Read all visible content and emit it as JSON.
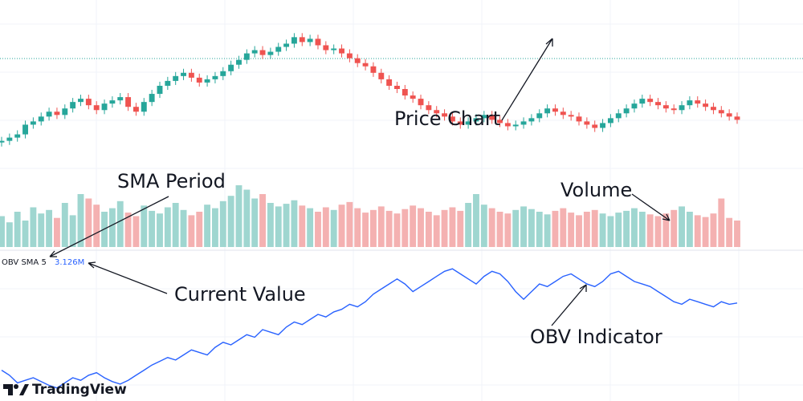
{
  "chart_data": {
    "type": "candlestick",
    "title": "",
    "panes": {
      "price": {
        "label": "Price Chart",
        "ylim": [
          0,
          100
        ],
        "reference_line": 30,
        "up_color": "#26a69a",
        "down_color": "#ef5350"
      },
      "volume": {
        "label": "Volume",
        "ylim": [
          0,
          100
        ]
      },
      "obv": {
        "label": "OBV Indicator",
        "indicator_name": "OBV SMA 5",
        "current_value": "3.126M",
        "line_color": "#2962ff",
        "ylim": [
          0,
          100
        ]
      }
    },
    "closes": [
      18,
      20,
      22,
      28,
      30,
      33,
      36,
      34,
      38,
      42,
      44,
      40,
      37,
      41,
      43,
      45,
      39,
      36,
      42,
      47,
      52,
      55,
      58,
      60,
      57,
      54,
      56,
      58,
      61,
      65,
      68,
      72,
      74,
      71,
      73,
      76,
      78,
      82,
      79,
      81,
      77,
      74,
      75,
      72,
      69,
      66,
      64,
      60,
      56,
      52,
      50,
      46,
      44,
      40,
      37,
      35,
      33,
      30,
      28,
      30,
      32,
      34,
      31,
      29,
      27,
      28,
      30,
      32,
      35,
      38,
      36,
      34,
      33,
      30,
      28,
      26,
      29,
      32,
      35,
      38,
      41,
      44,
      42,
      40,
      38,
      37,
      40,
      43,
      41,
      39,
      37,
      35,
      33,
      31
    ],
    "volumes": [
      35,
      28,
      40,
      30,
      45,
      38,
      42,
      33,
      50,
      36,
      60,
      55,
      48,
      40,
      44,
      52,
      39,
      35,
      47,
      41,
      38,
      45,
      50,
      42,
      36,
      40,
      48,
      44,
      52,
      58,
      70,
      65,
      55,
      60,
      50,
      46,
      49,
      53,
      47,
      44,
      40,
      45,
      42,
      48,
      51,
      44,
      39,
      42,
      46,
      41,
      38,
      43,
      47,
      44,
      40,
      36,
      42,
      45,
      41,
      50,
      60,
      48,
      44,
      40,
      38,
      42,
      46,
      43,
      40,
      37,
      41,
      44,
      39,
      36,
      40,
      42,
      38,
      35,
      39,
      41,
      44,
      40,
      37,
      35,
      38,
      42,
      46,
      40,
      36,
      34,
      38,
      55,
      33,
      30
    ],
    "obv_values": [
      18,
      14,
      8,
      10,
      12,
      9,
      6,
      4,
      8,
      12,
      10,
      14,
      16,
      12,
      9,
      7,
      10,
      14,
      18,
      22,
      25,
      28,
      26,
      30,
      34,
      32,
      30,
      36,
      40,
      38,
      42,
      46,
      44,
      50,
      48,
      46,
      52,
      56,
      54,
      58,
      62,
      60,
      64,
      66,
      70,
      68,
      72,
      78,
      82,
      86,
      90,
      86,
      80,
      84,
      88,
      92,
      96,
      98,
      94,
      90,
      86,
      92,
      96,
      94,
      88,
      80,
      74,
      80,
      86,
      84,
      88,
      92,
      94,
      90,
      86,
      84,
      88,
      94,
      96,
      92,
      88,
      86,
      84,
      80,
      76,
      72,
      70,
      74,
      72,
      70,
      68,
      72,
      70,
      71
    ],
    "annotations": {
      "price_chart": "Price Chart",
      "sma_period": "SMA Period",
      "volume": "Volume",
      "current_value": "Current Value",
      "obv_indicator": "OBV Indicator"
    }
  },
  "legend": {
    "name": "OBV SMA 5",
    "value": "3.126M"
  },
  "brand": {
    "name": "TradingView"
  },
  "colors": {
    "up": "#26a69a",
    "down": "#ef5350",
    "obv": "#2962ff",
    "up_vol": "#9fd6d0",
    "down_vol": "#f4b1b1",
    "ref_line": "#26a69a"
  }
}
